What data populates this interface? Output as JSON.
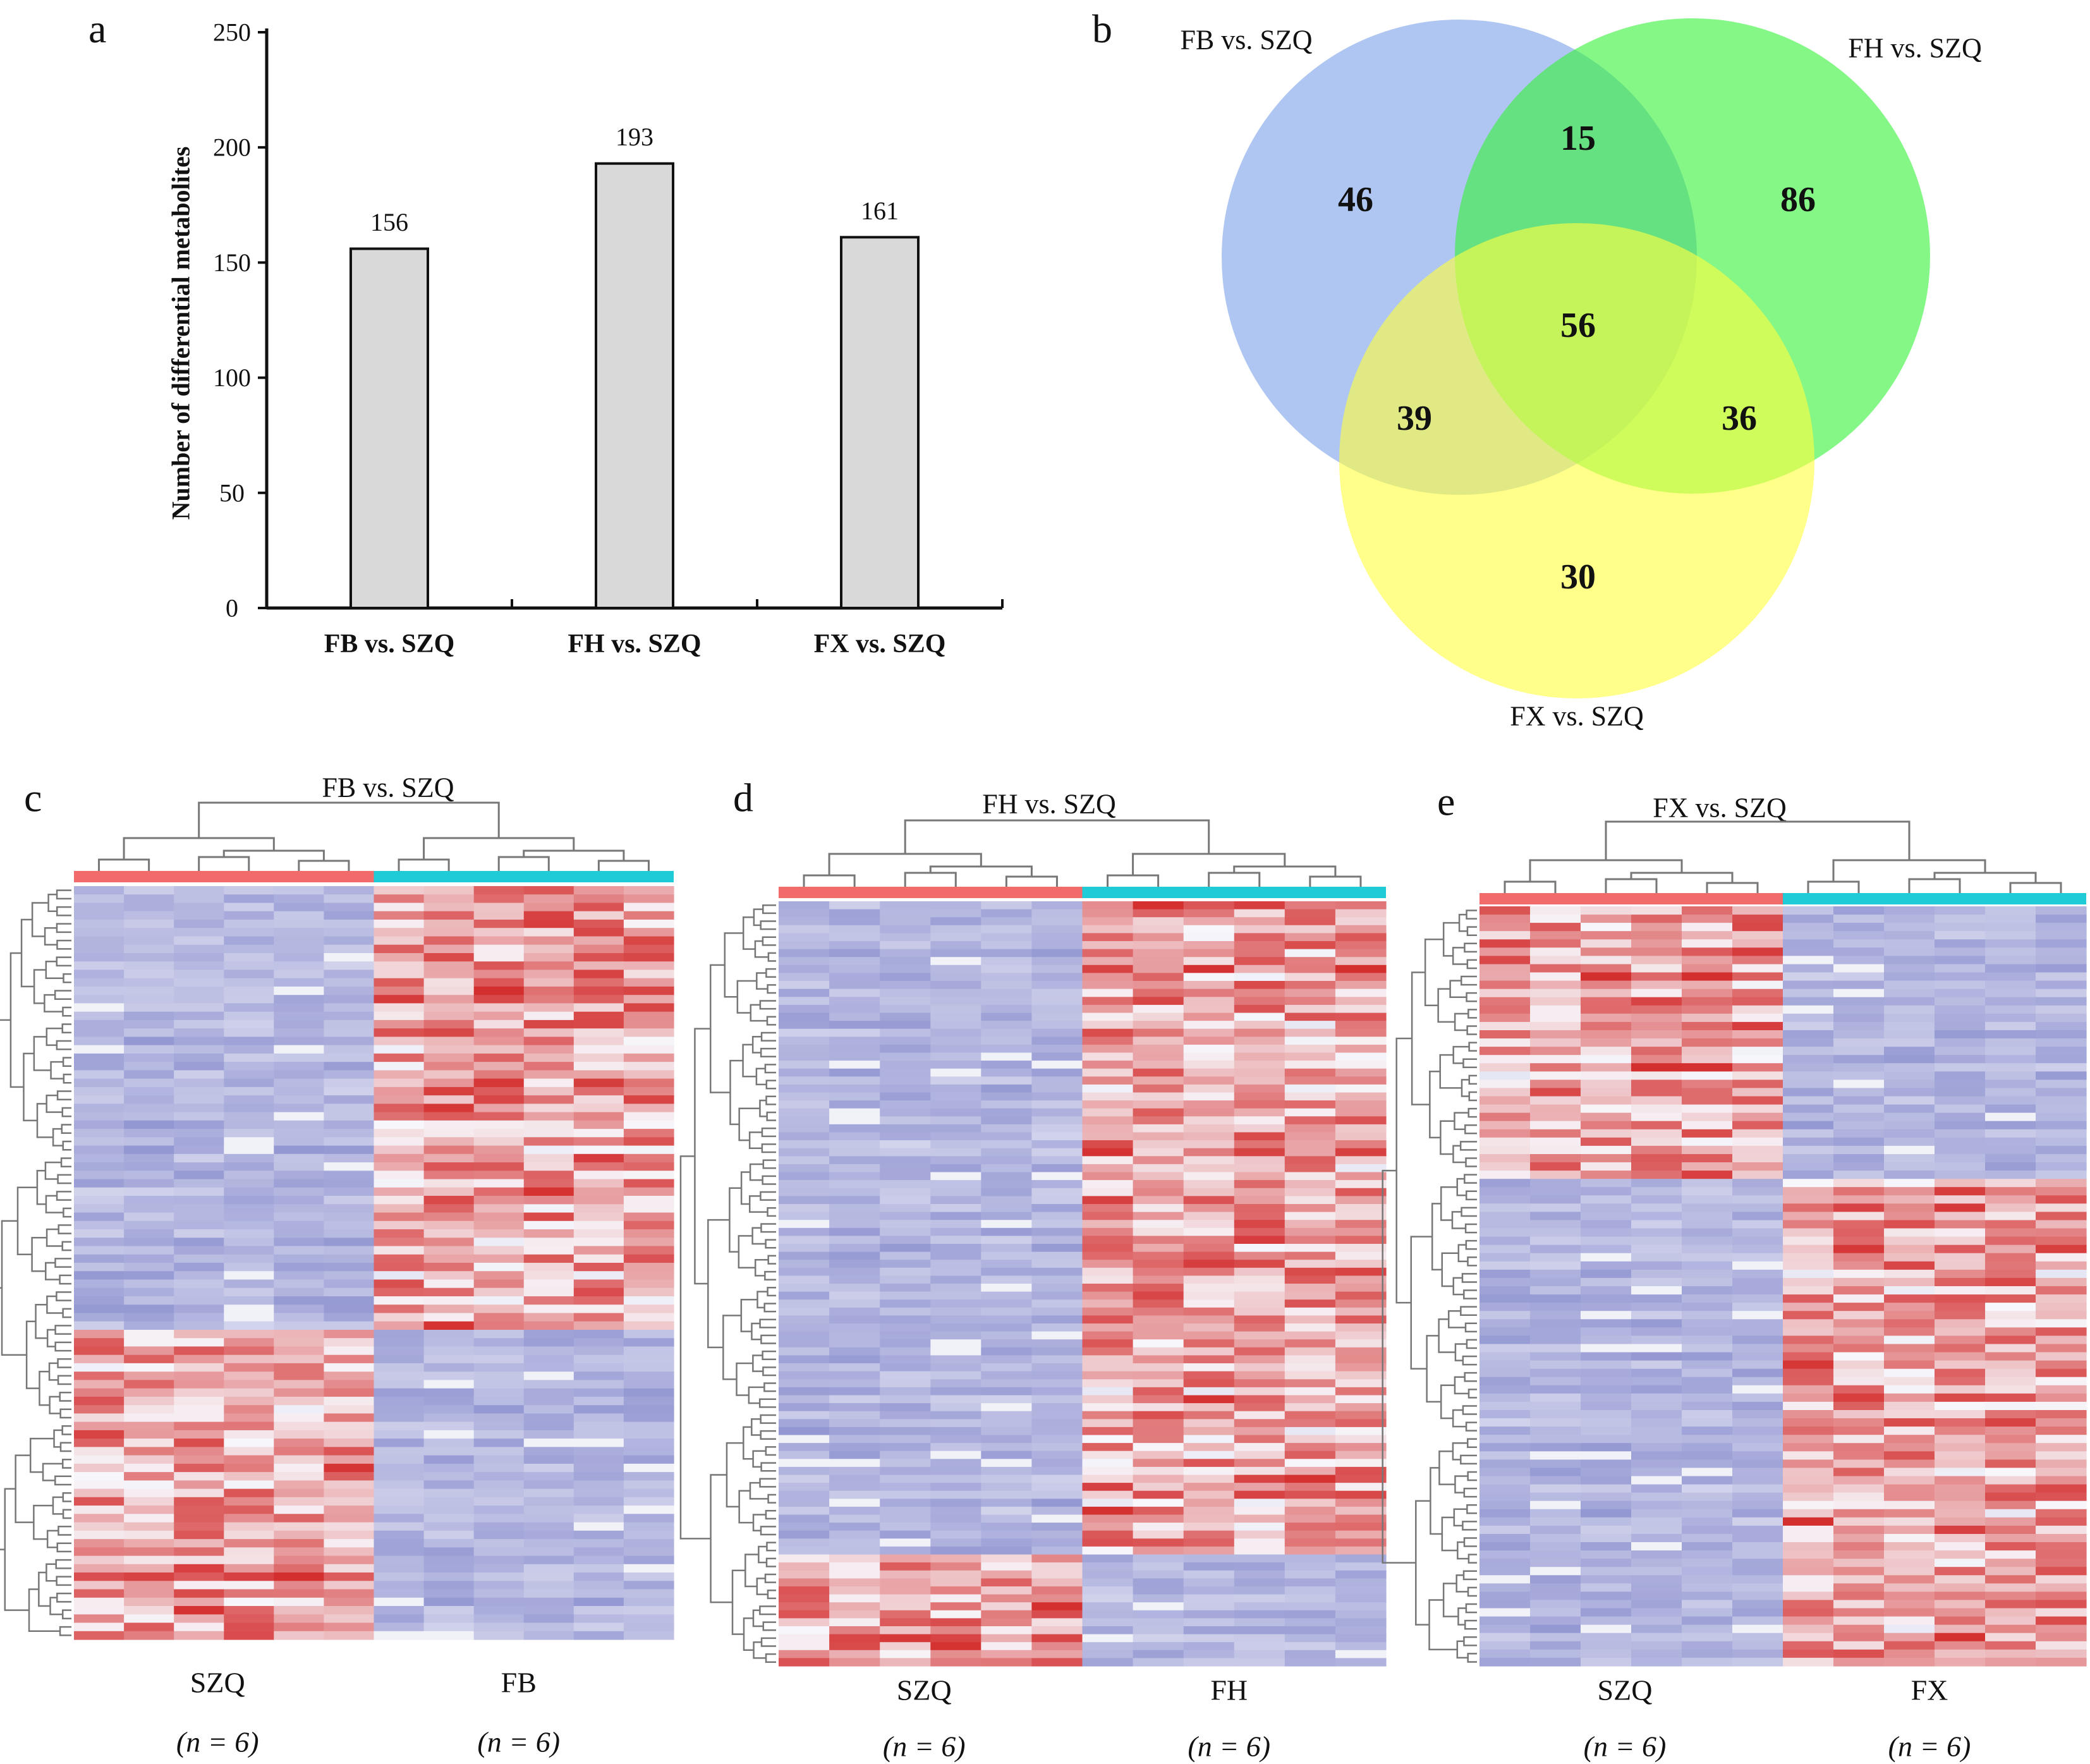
{
  "panels": {
    "a": {
      "letter": "a",
      "chart_data": {
        "type": "bar",
        "title": "",
        "categories": [
          "FB vs. SZQ",
          "FH vs. SZQ",
          "FX vs. SZQ"
        ],
        "values": [
          156,
          193,
          161
        ],
        "data_labels": [
          "156",
          "193",
          "161"
        ],
        "xlabel": "",
        "ylabel": "Number of differential metabolites",
        "ylim": [
          0,
          250
        ],
        "yticks": [
          0,
          50,
          100,
          150,
          200,
          250
        ],
        "ytick_labels": [
          "0",
          "50",
          "100",
          "150",
          "200",
          "250"
        ],
        "grid": false,
        "bar_color": "#d9d9d9",
        "edge_color": "#111111"
      }
    },
    "b": {
      "letter": "b",
      "venn": {
        "type": "venn3",
        "sets": [
          {
            "name": "FB vs. SZQ",
            "color": "#7ea3ea"
          },
          {
            "name": "FH vs. SZQ",
            "color": "#39f23c"
          },
          {
            "name": "FX vs. SZQ",
            "color": "#ffff40"
          }
        ],
        "regions": {
          "FB_only": 46,
          "FH_only": 86,
          "FX_only": 30,
          "FB_FH": 15,
          "FB_FX": 39,
          "FH_FX": 36,
          "FB_FH_FX": 56
        },
        "region_labels": {
          "FB_only": "46",
          "FH_only": "86",
          "FX_only": "30",
          "FB_FH": "15",
          "FB_FX": "39",
          "FH_FX": "36",
          "FB_FH_FX": "56"
        }
      }
    },
    "heatmaps": [
      {
        "letter": "c",
        "title": "FB vs. SZQ",
        "groups": [
          {
            "name": "SZQ",
            "n_label": "(n = 6)",
            "color": "#f26b6b"
          },
          {
            "name": "FB",
            "n_label": "(n = 6)",
            "color": "#1ecbd6"
          }
        ],
        "rows": 90,
        "cols_per_group": 6,
        "row_blocks": [
          {
            "fraction": 0.59,
            "left": "low",
            "right": "high"
          },
          {
            "fraction": 0.41,
            "left": "high",
            "right": "low"
          }
        ]
      },
      {
        "letter": "d",
        "title": "FH vs. SZQ",
        "groups": [
          {
            "name": "SZQ",
            "n_label": "(n = 6)",
            "color": "#f26b6b"
          },
          {
            "name": "FH",
            "n_label": "(n = 6)",
            "color": "#1ecbd6"
          }
        ],
        "rows": 96,
        "cols_per_group": 6,
        "row_blocks": [
          {
            "fraction": 0.855,
            "left": "low",
            "right": "high"
          },
          {
            "fraction": 0.145,
            "left": "high",
            "right": "low"
          }
        ]
      },
      {
        "letter": "e",
        "title": "FX vs. SZQ",
        "groups": [
          {
            "name": "SZQ",
            "n_label": "(n = 6)",
            "color": "#f26b6b"
          },
          {
            "name": "FX",
            "n_label": "(n = 6)",
            "color": "#1ecbd6"
          }
        ],
        "rows": 92,
        "cols_per_group": 6,
        "row_blocks": [
          {
            "fraction": 0.36,
            "left": "high",
            "right": "low"
          },
          {
            "fraction": 0.64,
            "left": "low",
            "right": "high"
          }
        ]
      }
    ],
    "heatmap_colors": {
      "low": "#7b80c8",
      "mid": "#f7f7fb",
      "high": "#d42f2f"
    }
  }
}
